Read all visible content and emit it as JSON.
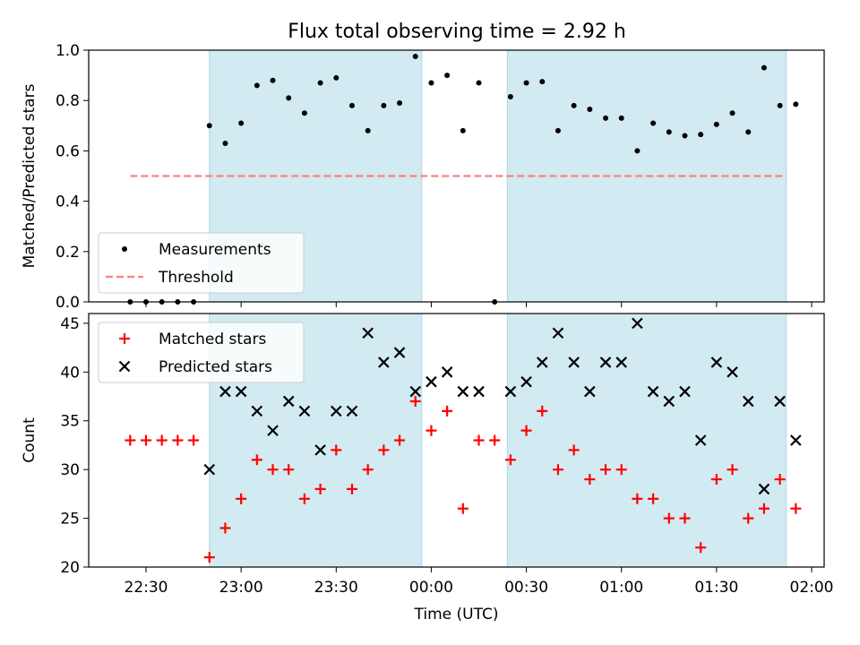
{
  "title": "Flux total observing time = 2.92 h",
  "colors": {
    "shade": "#add8e6",
    "measurement": "#000000",
    "threshold": "#ff7f7f",
    "matched": "#ff0000",
    "predicted": "#000000"
  },
  "chart_data": [
    {
      "type": "scatter",
      "ylabel": "Matched/Predicted stars",
      "ylim": [
        0,
        1.0
      ],
      "yticks": [
        0.0,
        0.2,
        0.4,
        0.6,
        0.8,
        1.0
      ],
      "ytick_labels": [
        "0.0",
        "0.2",
        "0.4",
        "0.6",
        "0.8",
        "1.0"
      ],
      "legend_location": "lower-left",
      "legend": [
        {
          "label": "Measurements",
          "marker": "dot"
        },
        {
          "label": "Threshold",
          "marker": "dashed-line"
        }
      ],
      "shaded_intervals": [
        [
          "22:50",
          "23:57"
        ],
        [
          "00:24",
          "01:52"
        ]
      ],
      "threshold": {
        "value": 0.5,
        "x_start": "22:25",
        "x_end": "01:52"
      },
      "series": [
        {
          "name": "Measurements",
          "x": [
            "22:25",
            "22:30",
            "22:35",
            "22:40",
            "22:45",
            "22:50",
            "22:55",
            "23:00",
            "23:05",
            "23:10",
            "23:15",
            "23:20",
            "23:25",
            "23:30",
            "23:35",
            "23:40",
            "23:45",
            "23:50",
            "23:55",
            "00:00",
            "00:05",
            "00:10",
            "00:15",
            "00:20",
            "00:25",
            "00:30",
            "00:35",
            "00:40",
            "00:45",
            "00:50",
            "00:55",
            "01:00",
            "01:05",
            "01:10",
            "01:15",
            "01:20",
            "01:25",
            "01:30",
            "01:35",
            "01:40",
            "01:45",
            "01:50",
            "01:55"
          ],
          "y": [
            0.0,
            0.0,
            0.0,
            0.0,
            0.0,
            0.7,
            0.63,
            0.71,
            0.86,
            0.88,
            0.81,
            0.75,
            0.87,
            0.89,
            0.78,
            0.68,
            0.78,
            0.79,
            0.975,
            0.87,
            0.9,
            0.68,
            0.87,
            0.0,
            0.815,
            0.87,
            0.875,
            0.68,
            0.78,
            0.765,
            0.73,
            0.73,
            0.6,
            0.71,
            0.675,
            0.66,
            0.665,
            0.705,
            0.75,
            0.675,
            0.93,
            0.78,
            0.785
          ]
        }
      ]
    },
    {
      "type": "scatter",
      "xlabel": "Time (UTC)",
      "ylabel": "Count",
      "ylim": [
        20,
        46
      ],
      "yticks": [
        20,
        25,
        30,
        35,
        40,
        45
      ],
      "ytick_labels": [
        "20",
        "25",
        "30",
        "35",
        "40",
        "45"
      ],
      "xticks": [
        "22:30",
        "23:00",
        "23:30",
        "00:00",
        "00:30",
        "01:00",
        "01:30",
        "02:00"
      ],
      "legend_location": "upper-left",
      "legend": [
        {
          "label": "Matched stars",
          "marker": "plus"
        },
        {
          "label": "Predicted stars",
          "marker": "x"
        }
      ],
      "shaded_intervals": [
        [
          "22:50",
          "23:57"
        ],
        [
          "00:24",
          "01:52"
        ]
      ],
      "series": [
        {
          "name": "Matched stars",
          "x": [
            "22:25",
            "22:30",
            "22:35",
            "22:40",
            "22:45",
            "22:50",
            "22:55",
            "23:00",
            "23:05",
            "23:10",
            "23:15",
            "23:20",
            "23:25",
            "23:30",
            "23:35",
            "23:40",
            "23:45",
            "23:50",
            "23:55",
            "00:00",
            "00:05",
            "00:10",
            "00:15",
            "00:20",
            "00:25",
            "00:30",
            "00:35",
            "00:40",
            "00:45",
            "00:50",
            "00:55",
            "01:00",
            "01:05",
            "01:10",
            "01:15",
            "01:20",
            "01:25",
            "01:30",
            "01:35",
            "01:40",
            "01:45",
            "01:50",
            "01:55"
          ],
          "y": [
            33,
            33,
            33,
            33,
            33,
            21,
            24,
            27,
            31,
            30,
            30,
            27,
            28,
            32,
            28,
            30,
            32,
            33,
            37,
            34,
            36,
            26,
            33,
            33,
            31,
            34,
            36,
            30,
            32,
            29,
            30,
            30,
            27,
            27,
            25,
            25,
            22,
            29,
            30,
            25,
            26,
            29,
            26
          ]
        },
        {
          "name": "Predicted stars",
          "x": [
            "22:50",
            "22:55",
            "23:00",
            "23:05",
            "23:10",
            "23:15",
            "23:20",
            "23:25",
            "23:30",
            "23:35",
            "23:40",
            "23:45",
            "23:50",
            "23:55",
            "00:00",
            "00:05",
            "00:10",
            "00:15",
            "00:25",
            "00:30",
            "00:35",
            "00:40",
            "00:45",
            "00:50",
            "00:55",
            "01:00",
            "01:05",
            "01:10",
            "01:15",
            "01:20",
            "01:25",
            "01:30",
            "01:35",
            "01:40",
            "01:45",
            "01:50",
            "01:55"
          ],
          "y": [
            30,
            38,
            38,
            36,
            34,
            37,
            36,
            32,
            36,
            36,
            44,
            41,
            42,
            38,
            39,
            40,
            38,
            38,
            38,
            39,
            41,
            44,
            41,
            38,
            41,
            41,
            45,
            38,
            37,
            38,
            33,
            41,
            40,
            37,
            28,
            37,
            33
          ]
        }
      ]
    }
  ]
}
